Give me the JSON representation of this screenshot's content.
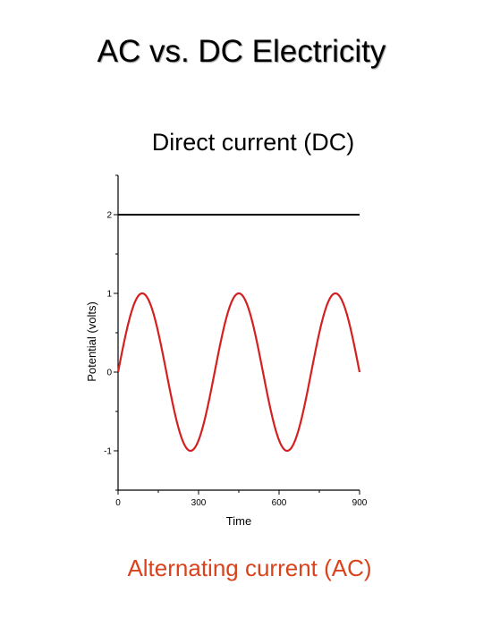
{
  "slide": {
    "title": "AC vs. DC Electricity",
    "dc_label": "Direct current (DC)",
    "ac_label": "Alternating current (AC)"
  },
  "colors": {
    "ac": "#d42020",
    "ac_label": "#d8431c",
    "dc": "#000000",
    "axis": "#000000"
  },
  "chart_data": {
    "type": "line",
    "xlabel": "Time",
    "ylabel": "Potential (volts)",
    "xlim": [
      0,
      900
    ],
    "ylim": [
      -1.5,
      2.5
    ],
    "xticks": [
      0,
      300,
      600,
      900
    ],
    "xtick_labels": [
      "0",
      "300",
      "600",
      "900"
    ],
    "yticks": [
      -1,
      0,
      1,
      2
    ],
    "ytick_labels": [
      "-1",
      "0",
      "1",
      "2"
    ],
    "grid": false,
    "series": [
      {
        "type": "constant",
        "value": 2,
        "x_range": [
          0,
          900
        ]
      },
      {
        "type": "sine",
        "amplitude": 1,
        "period": 360,
        "phase_deg": 0,
        "x_range": [
          0,
          900
        ]
      }
    ]
  }
}
